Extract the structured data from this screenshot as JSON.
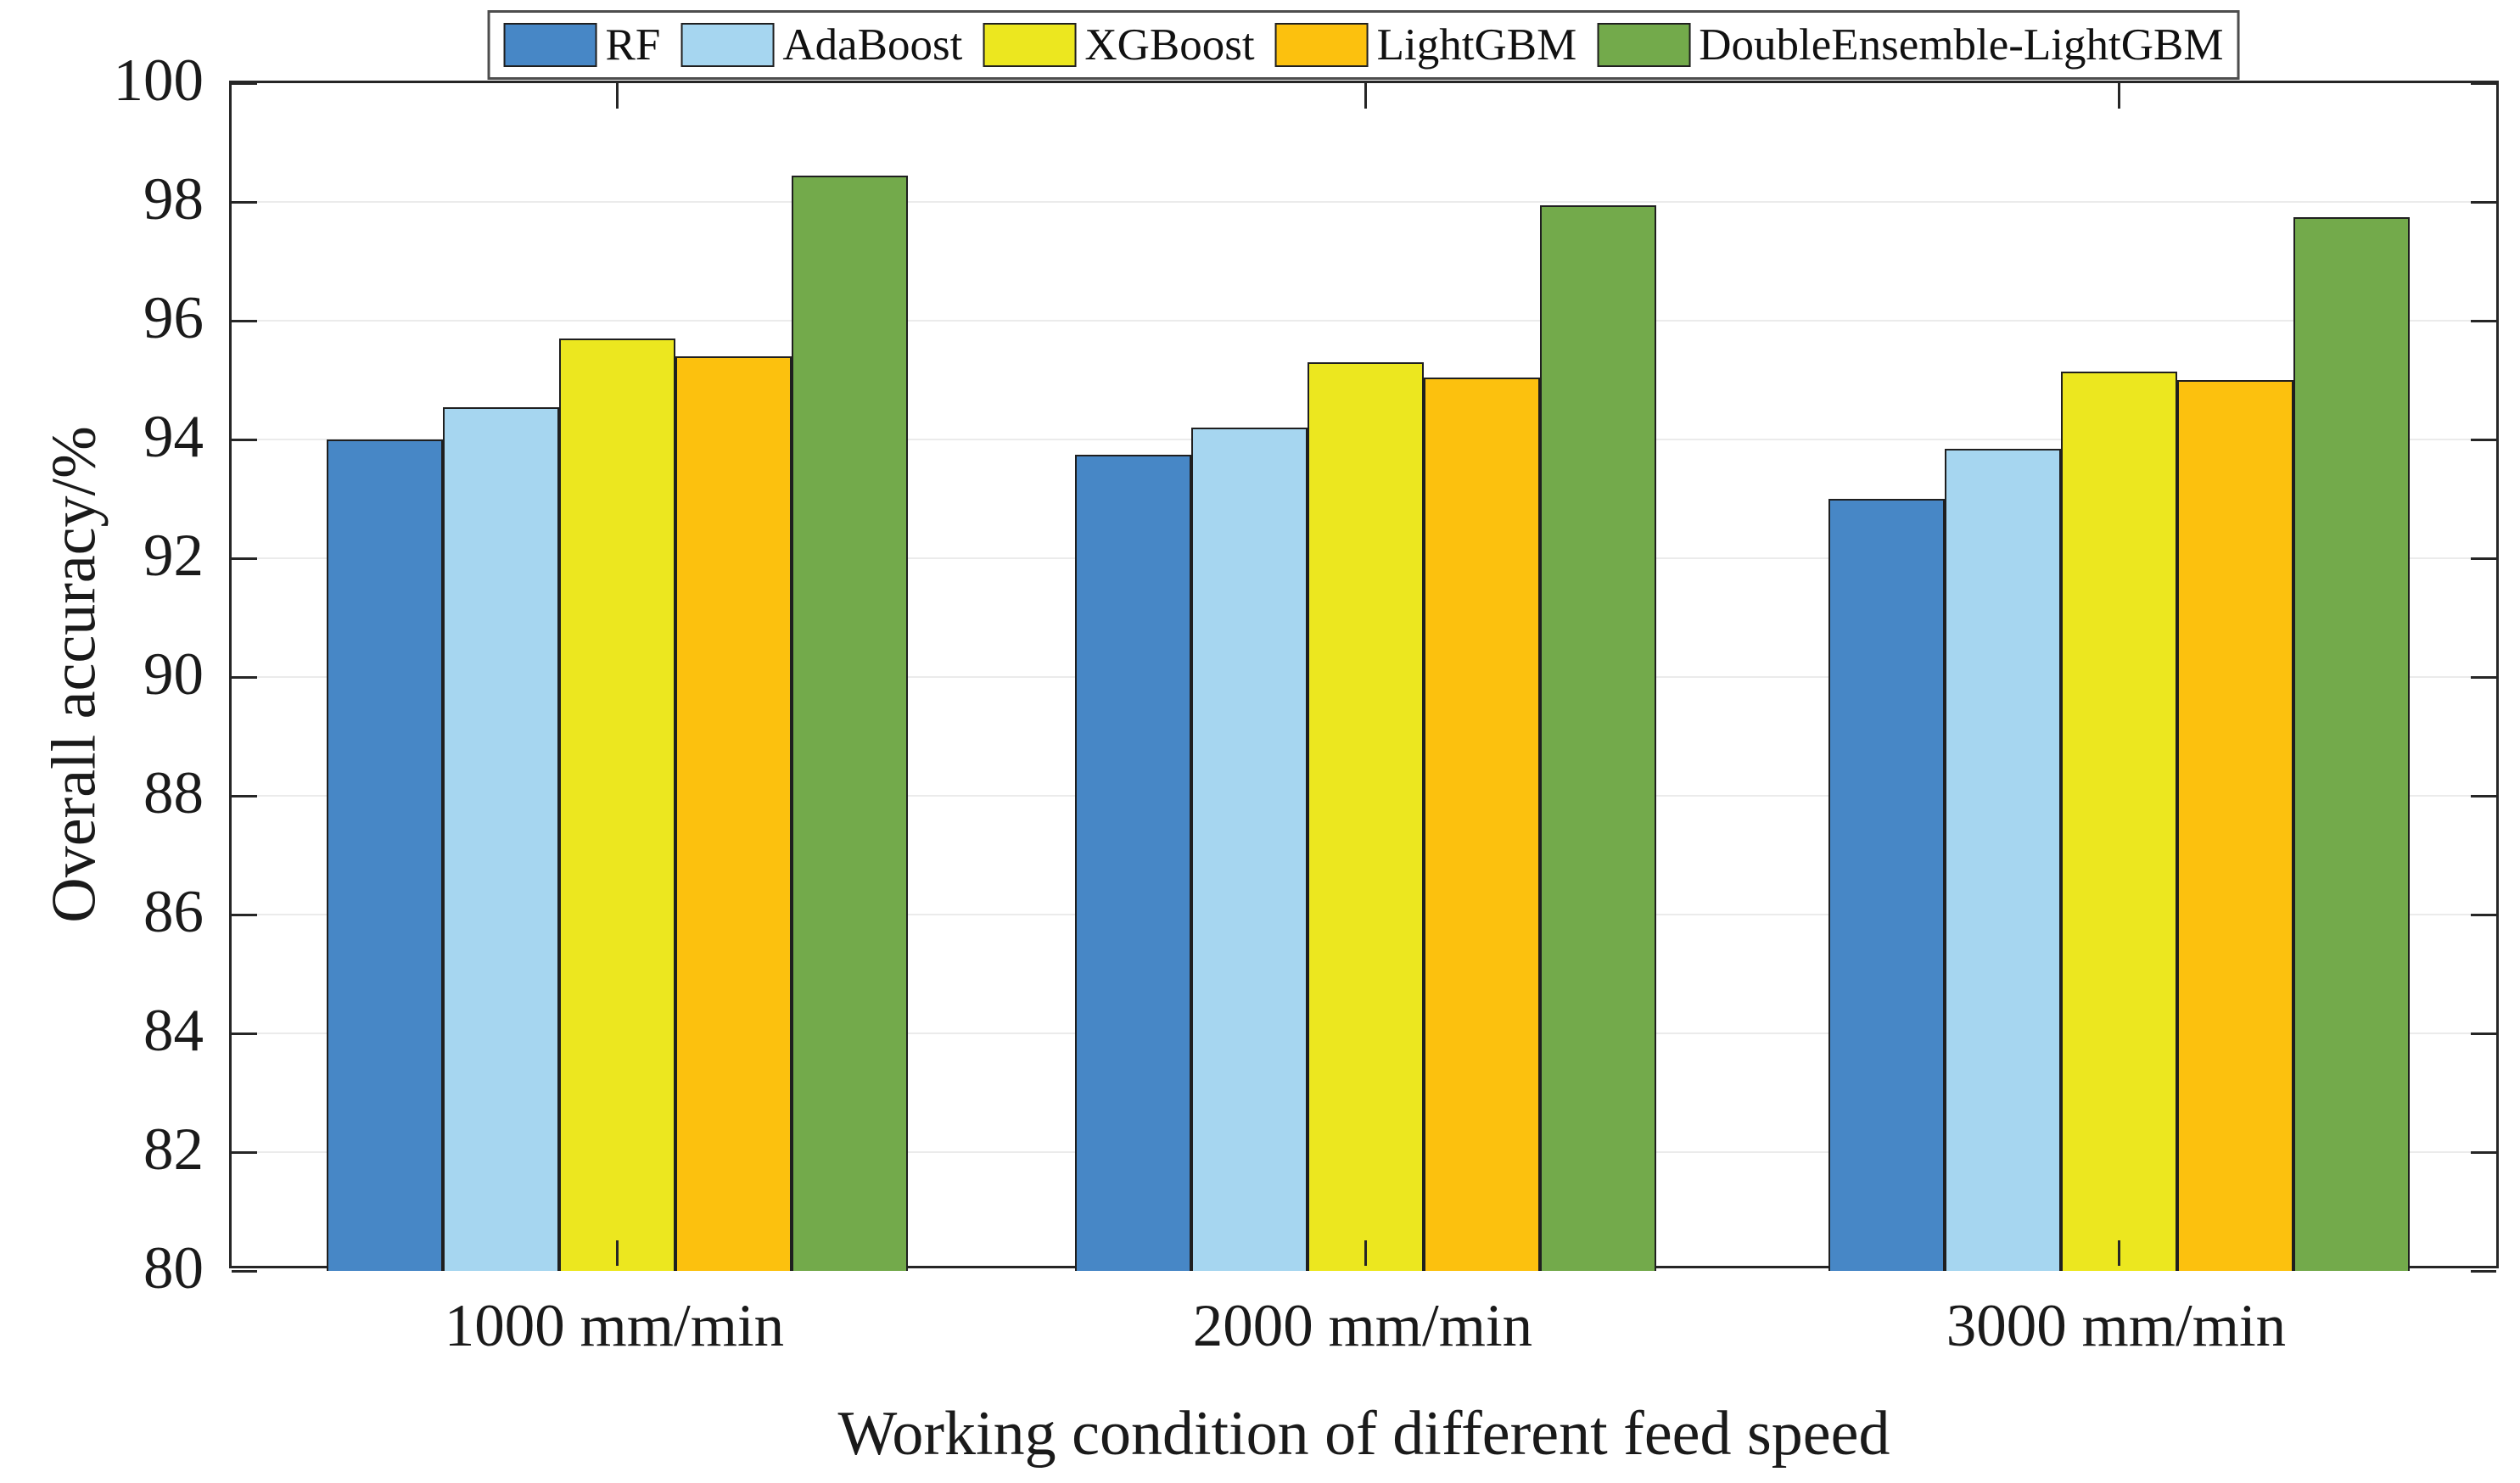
{
  "chart_data": {
    "type": "bar",
    "title": "",
    "xlabel": "Working condition of different feed speed",
    "ylabel": "Overall accuracy/%",
    "categories": [
      "1000 mm/min",
      "2000 mm/min",
      "3000 mm/min"
    ],
    "series": [
      {
        "name": "RF",
        "color": "#4787c6",
        "values": [
          94.0,
          93.75,
          93.0
        ]
      },
      {
        "name": "AdaBoost",
        "color": "#a6d6f0",
        "values": [
          94.55,
          94.2,
          93.85
        ]
      },
      {
        "name": "XGBoost",
        "color": "#ece71f",
        "values": [
          95.7,
          95.3,
          95.15
        ]
      },
      {
        "name": "LightGBM",
        "color": "#fcc10e",
        "values": [
          95.4,
          95.05,
          95.0
        ]
      },
      {
        "name": "DoubleEnsemble-LightGBM",
        "color": "#73aa4b",
        "values": [
          98.45,
          97.95,
          97.75
        ]
      }
    ],
    "ylim": [
      80,
      100
    ],
    "yticks": [
      80,
      82,
      84,
      86,
      88,
      90,
      92,
      94,
      96,
      98,
      100
    ],
    "grid": true,
    "legend_position": "top-center",
    "bar_edge_color": "#1f1f1f",
    "axis_color": "#262626",
    "grid_color": "#ebebeb"
  }
}
